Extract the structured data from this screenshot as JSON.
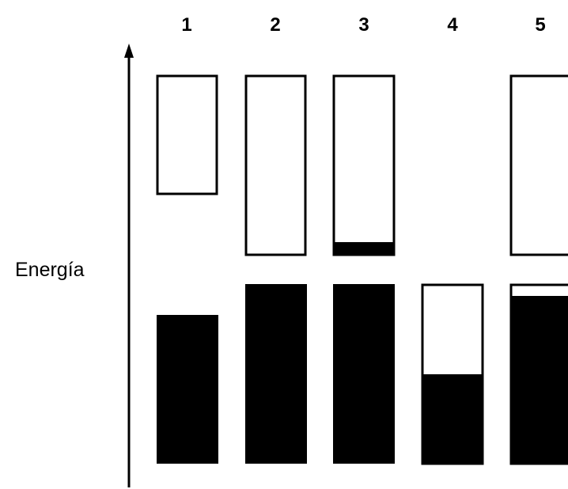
{
  "axis_label": "Energía",
  "columns": [
    {
      "label": "1"
    },
    {
      "label": "2"
    },
    {
      "label": "3"
    },
    {
      "label": "4"
    },
    {
      "label": "5"
    }
  ],
  "colors": {
    "filled": "#000000",
    "empty": "#ffffff",
    "outline": "#000000"
  }
}
